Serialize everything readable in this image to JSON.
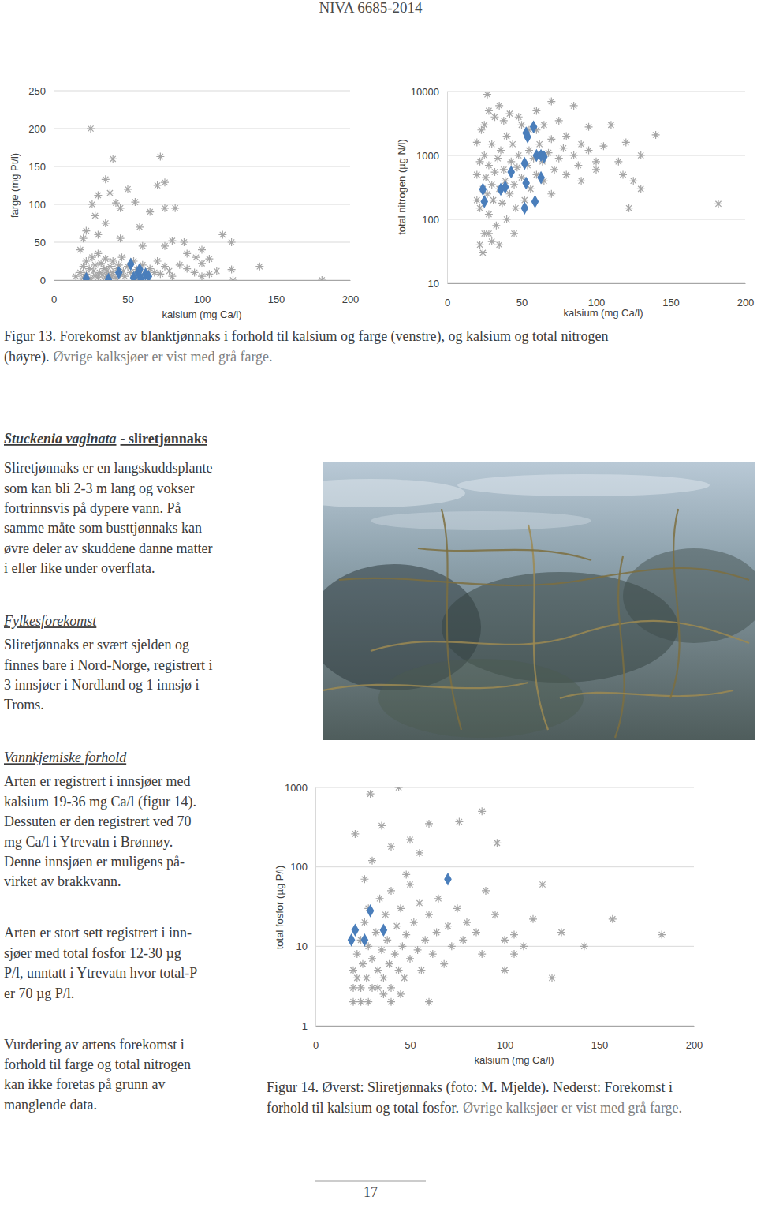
{
  "header": "NIVA 6685-2014",
  "chart_data": [
    {
      "type": "scatter",
      "xlabel": "kalsium (mg Ca/l)",
      "ylabel": "farge (mg Pt/l)",
      "xlim": [
        0,
        200
      ],
      "ylim": [
        0,
        250
      ],
      "xticks": [
        0,
        50,
        100,
        150,
        200
      ],
      "yticks": [
        0,
        50,
        100,
        150,
        200,
        250
      ],
      "grid": true,
      "series": [
        {
          "color": "#a6a6a6",
          "marker": "asterisk",
          "x": [
            15,
            18,
            20,
            20,
            22,
            22,
            24,
            25,
            26,
            27,
            28,
            28,
            30,
            30,
            31,
            32,
            33,
            34,
            35,
            35,
            36,
            37,
            38,
            39,
            40,
            40,
            42,
            43,
            44,
            45,
            46,
            47,
            48,
            50,
            52,
            54,
            55,
            56,
            58,
            60,
            62,
            65,
            68,
            70,
            72,
            75,
            78,
            80,
            85,
            90,
            95,
            100,
            105,
            110,
            120,
            139,
            181,
            25,
            40,
            35,
            30,
            38,
            55,
            70,
            75,
            82,
            65,
            45,
            50,
            42,
            58,
            80,
            88,
            96,
            100,
            120,
            105,
            100,
            90,
            75,
            60,
            45,
            30,
            22,
            20,
            18,
            35,
            28,
            26,
            121,
            114,
            72,
            75
          ],
          "values": [
            5,
            10,
            3,
            18,
            8,
            25,
            15,
            2,
            30,
            12,
            6,
            20,
            4,
            35,
            10,
            22,
            7,
            15,
            3,
            28,
            12,
            8,
            18,
            5,
            25,
            10,
            3,
            15,
            20,
            8,
            30,
            12,
            5,
            18,
            10,
            25,
            3,
            14,
            8,
            20,
            5,
            15,
            10,
            25,
            8,
            18,
            12,
            5,
            20,
            15,
            10,
            5,
            8,
            12,
            14,
            18,
            0,
            200,
            160,
            133,
            112,
            115,
            103,
            125,
            95,
            95,
            90,
            95,
            120,
            102,
            70,
            52,
            50,
            30,
            22,
            50,
            28,
            40,
            35,
            45,
            45,
            55,
            60,
            65,
            55,
            40,
            75,
            85,
            100,
            0,
            60,
            163,
            129
          ]
        },
        {
          "color": "#4a7ebb",
          "marker": "diamond",
          "x": [
            22,
            37,
            44,
            52,
            54,
            57,
            59,
            62,
            64,
            58
          ],
          "values": [
            2,
            1,
            10,
            21,
            3,
            10,
            1,
            8,
            5,
            14
          ]
        }
      ]
    },
    {
      "type": "scatter",
      "xlabel": "kalsium (mg Ca/l)",
      "ylabel": "total nitrogen (µg N/l)",
      "log": "y",
      "xlim": [
        0,
        200
      ],
      "ylim": [
        10,
        10000
      ],
      "xticks": [
        0,
        50,
        100,
        150,
        200
      ],
      "yticks": [
        10,
        100,
        1000,
        10000
      ],
      "grid": true,
      "series": [
        {
          "color": "#a6a6a6",
          "marker": "asterisk",
          "x": [
            20,
            20,
            22,
            22,
            24,
            25,
            25,
            26,
            27,
            28,
            28,
            30,
            30,
            31,
            32,
            33,
            34,
            35,
            35,
            36,
            37,
            38,
            39,
            40,
            40,
            42,
            43,
            44,
            45,
            46,
            47,
            48,
            50,
            50,
            52,
            54,
            55,
            56,
            58,
            60,
            60,
            62,
            64,
            65,
            68,
            70,
            72,
            75,
            78,
            80,
            85,
            88,
            90,
            95,
            100,
            105,
            110,
            115,
            118,
            120,
            125,
            130,
            140,
            182,
            28,
            25,
            35,
            42,
            60,
            85,
            22,
            28,
            30,
            45,
            24,
            20,
            23,
            32,
            38,
            48,
            55,
            65,
            75,
            95,
            130,
            100,
            90,
            80,
            70,
            122,
            27,
            70
          ],
          "values": [
            200,
            500,
            150,
            800,
            300,
            1000,
            60,
            450,
            250,
            120,
            700,
            350,
            1500,
            200,
            550,
            80,
            900,
            300,
            40,
            1200,
            180,
            600,
            400,
            2000,
            100,
            250,
            800,
            1500,
            350,
            150,
            650,
            1000,
            450,
            3000,
            200,
            700,
            1200,
            300,
            900,
            500,
            2500,
            1500,
            800,
            400,
            1100,
            1800,
            600,
            900,
            1300,
            2000,
            1000,
            700,
            1500,
            1200,
            800,
            1400,
            3000,
            800,
            500,
            1600,
            400,
            1000,
            2100,
            175,
            5000,
            3000,
            6000,
            4500,
            5000,
            6000,
            40,
            60,
            45,
            60,
            30,
            1600,
            2500,
            4000,
            3500,
            4000,
            2500,
            3000,
            3500,
            2800,
            300,
            600,
            400,
            500,
            250,
            150,
            9000,
            7000
          ]
        },
        {
          "color": "#4a7ebb",
          "marker": "diamond",
          "x": [
            24,
            25,
            36,
            39,
            43,
            52,
            53,
            53,
            54,
            58,
            60,
            63,
            63,
            65,
            59,
            52
          ],
          "values": [
            295,
            190,
            295,
            320,
            550,
            750,
            370,
            2250,
            1950,
            2800,
            1000,
            450,
            1000,
            950,
            190,
            150
          ]
        }
      ]
    },
    {
      "type": "scatter",
      "xlabel": "kalsium (mg Ca/l)",
      "ylabel": "total fosfor (µg P/l)",
      "log": "y",
      "xlim": [
        0,
        200
      ],
      "ylim": [
        1,
        1000
      ],
      "xticks": [
        0,
        50,
        100,
        150,
        200
      ],
      "yticks": [
        1,
        10,
        100,
        1000
      ],
      "grid": true,
      "series": [
        {
          "color": "#a6a6a6",
          "marker": "asterisk",
          "x": [
            20,
            20,
            22,
            22,
            24,
            24,
            25,
            26,
            27,
            28,
            28,
            30,
            30,
            32,
            33,
            34,
            35,
            36,
            37,
            38,
            39,
            40,
            40,
            42,
            43,
            44,
            45,
            46,
            47,
            48,
            50,
            50,
            52,
            54,
            55,
            56,
            58,
            60,
            62,
            64,
            65,
            68,
            70,
            72,
            75,
            78,
            80,
            85,
            88,
            90,
            95,
            100,
            105,
            110,
            115,
            120,
            125,
            142,
            157,
            183,
            88,
            76,
            96,
            35,
            21,
            44,
            29,
            60,
            50,
            40,
            55,
            30,
            48,
            26,
            60,
            33,
            40,
            45,
            28,
            100,
            130,
            105,
            20,
            24,
            36
          ],
          "values": [
            3,
            5,
            4,
            8,
            3,
            12,
            6,
            20,
            4,
            10,
            30,
            3,
            7,
            15,
            5,
            40,
            9,
            4,
            25,
            12,
            6,
            3,
            50,
            8,
            18,
            5,
            30,
            10,
            4,
            14,
            7,
            60,
            20,
            9,
            35,
            5,
            12,
            25,
            8,
            15,
            40,
            6,
            18,
            10,
            30,
            12,
            20,
            15,
            8,
            50,
            25,
            12,
            14,
            10,
            22,
            60,
            4,
            10,
            22,
            14,
            500,
            370,
            200,
            330,
            260,
            1000,
            830,
            350,
            220,
            180,
            150,
            120,
            80,
            70,
            2,
            3,
            2,
            2.5,
            2,
            5,
            15,
            8,
            2,
            2,
            2.5
          ]
        },
        {
          "color": "#4a7ebb",
          "marker": "diamond",
          "x": [
            19,
            21,
            26,
            29,
            36,
            70
          ],
          "values": [
            12,
            16,
            12,
            28,
            16,
            70
          ]
        }
      ]
    }
  ],
  "figure_13_caption": [
    [
      {
        "text": "Figur 13. Forekomst av blanktjønnaks i forhold til kalsium og farge (venstre), og kalsium og total nitrogen"
      }
    ],
    [
      {
        "text": "(høyre)."
      },
      {
        "text": "Øvrige kalksjøer er vist med grå farge.",
        "color": "#808080"
      }
    ]
  ],
  "species_heading": {
    "latin": "Stuckenia vaginata",
    "common": "- sliretjønnaks"
  },
  "intro": [
    "Sliretjønnaks er en langskuddsplante",
    "som kan bli 2-3 m lang og vokser",
    "fortrinnsvis på dypere vann. På",
    "samme måte som busttjønnaks kan",
    "øvre deler av skuddene danne matter",
    "i eller like under overflata."
  ],
  "sections": [
    {
      "heading": "Fylkesforekomst",
      "paragraphs": [
        [
          "Sliretjønnaks er svært sjelden og",
          "finnes bare i Nord-Norge, registrert i",
          "3 innsjøer i Nordland og 1 innsjø i",
          "Troms."
        ]
      ]
    },
    {
      "heading": "Vannkjemiske forhold",
      "paragraphs": [
        [
          "Arten er registrert i innsjøer med",
          "kalsium 19-36 mg Ca/l (figur 14).",
          "Dessuten er den registrert ved 70",
          "mg Ca/l i Ytrevatn i Brønnøy.",
          "Denne innsjøen er muligens på-",
          "virket av brakkvann."
        ],
        [
          "Arten er stort sett registrert i inn-",
          "sjøer med total fosfor 12-30 µg",
          "P/l, unntatt i Ytrevatn hvor total-P",
          "er 70 µg P/l."
        ],
        [
          "Vurdering av artens forekomst i",
          "forhold til farge og total nitrogen",
          "kan ikke foretas på grunn av",
          "manglende data."
        ]
      ]
    }
  ],
  "figure_14_caption": [
    [
      {
        "text": "Figur 14. Øverst: Sliretjønnaks (foto: M. Mjelde). Nederst: Forekomst i"
      }
    ],
    [
      {
        "text": "forhold til kalsium og total fosfor."
      },
      {
        "text": "Øvrige kalksjøer er vist med grå farge.",
        "color": "#808080"
      }
    ]
  ],
  "page_number": "17"
}
